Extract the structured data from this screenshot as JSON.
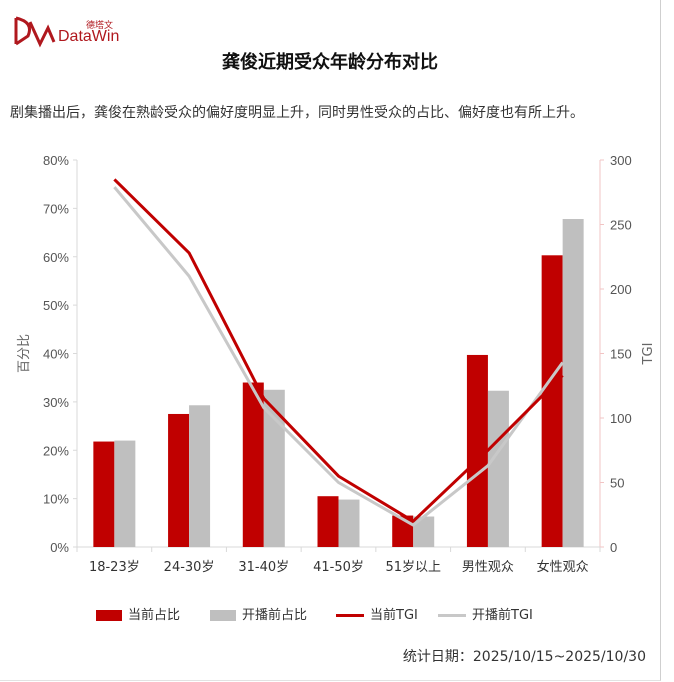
{
  "logo": {
    "cn": "德塔文",
    "en": "DataWin"
  },
  "title": "龚俊近期受众年龄分布对比",
  "subtitle": "剧集播出后，龚俊在熟龄受众的偏好度明显上升，同时男性受众的占比、偏好度也有所上升。",
  "footer": "统计日期：2025/10/15~2025/10/30",
  "chart_data": {
    "type": "bar",
    "title": "龚俊近期受众年龄分布对比",
    "categories": [
      "18-23岁",
      "24-30岁",
      "31-40岁",
      "41-50岁",
      "51岁以上",
      "男性观众",
      "女性观众"
    ],
    "y_left": {
      "label": "百分比",
      "lim": [
        0,
        80
      ],
      "ticks": [
        "0%",
        "10%",
        "20%",
        "30%",
        "40%",
        "50%",
        "60%",
        "70%",
        "80%"
      ]
    },
    "y_right": {
      "label": "TGI",
      "lim": [
        0,
        300
      ],
      "ticks": [
        "0",
        "50",
        "100",
        "150",
        "200",
        "250",
        "300"
      ]
    },
    "series": [
      {
        "name": "当前占比",
        "kind": "bar",
        "axis": "left",
        "color": "#c00000",
        "values": [
          21.8,
          27.5,
          34.0,
          10.5,
          6.5,
          39.7,
          60.3
        ]
      },
      {
        "name": "开播前占比",
        "kind": "bar",
        "axis": "left",
        "color": "#bfbfbf",
        "values": [
          22.0,
          29.3,
          32.5,
          9.8,
          6.3,
          32.3,
          67.8
        ]
      },
      {
        "name": "当前TGI",
        "kind": "line",
        "axis": "right",
        "color": "#c00000",
        "values": [
          285,
          228,
          115,
          55,
          20,
          75,
          133
        ]
      },
      {
        "name": "开播前TGI",
        "kind": "line",
        "axis": "right",
        "color": "#c8c8c8",
        "values": [
          279,
          210,
          108,
          50,
          17,
          63,
          143
        ]
      }
    ],
    "grid": false,
    "legend_position": "bottom"
  }
}
